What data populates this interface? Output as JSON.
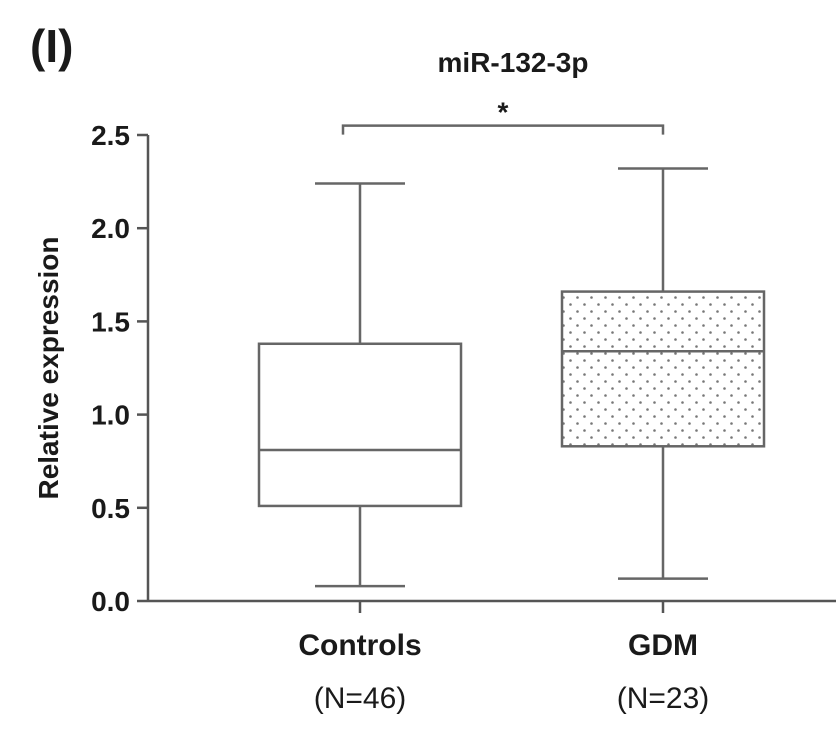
{
  "panel_label": "(I)",
  "chart_data": {
    "type": "box",
    "title": "miR-132-3p",
    "ylabel": "Relative expression",
    "ylim": [
      0,
      2.5
    ],
    "yticks": [
      {
        "value": 0.0,
        "label": "0.0"
      },
      {
        "value": 0.5,
        "label": "0.5"
      },
      {
        "value": 1.0,
        "label": "1.0"
      },
      {
        "value": 1.5,
        "label": "1.5"
      },
      {
        "value": 2.0,
        "label": "2.0"
      },
      {
        "value": 2.5,
        "label": "2.5"
      }
    ],
    "groups": [
      {
        "name": "Controls",
        "n_label": "(N=46)",
        "min": 0.08,
        "q1": 0.51,
        "median": 0.81,
        "q3": 1.38,
        "max": 2.24,
        "pattern": "none"
      },
      {
        "name": "GDM",
        "n_label": "(N=23)",
        "min": 0.12,
        "q1": 0.83,
        "median": 1.34,
        "q3": 1.66,
        "max": 2.32,
        "pattern": "dots"
      }
    ],
    "significance": {
      "between": [
        0,
        1
      ],
      "y": 2.55,
      "label": "*"
    }
  }
}
